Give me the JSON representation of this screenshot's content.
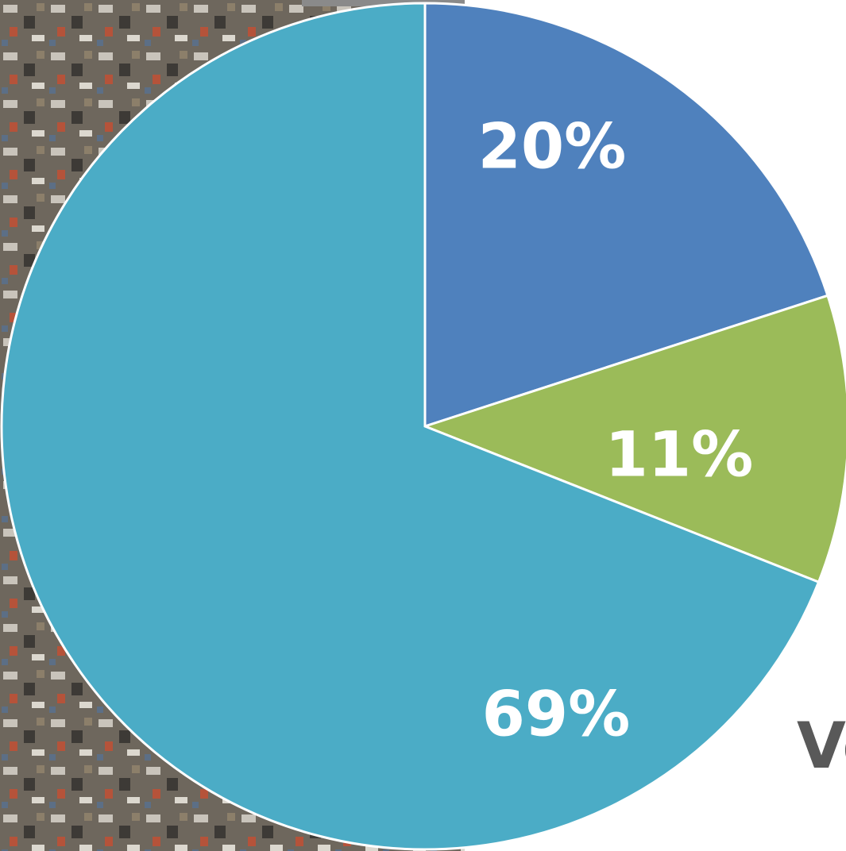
{
  "chart_data": {
    "type": "pie",
    "categories": [
      null,
      null,
      null
    ],
    "values": [
      20,
      11,
      69
    ],
    "value_labels": [
      "20%",
      "11%",
      "69%"
    ],
    "colors": [
      "#4f81bd",
      "#9bbb59",
      "#4bacc6"
    ],
    "annotation": "Ve"
  }
}
